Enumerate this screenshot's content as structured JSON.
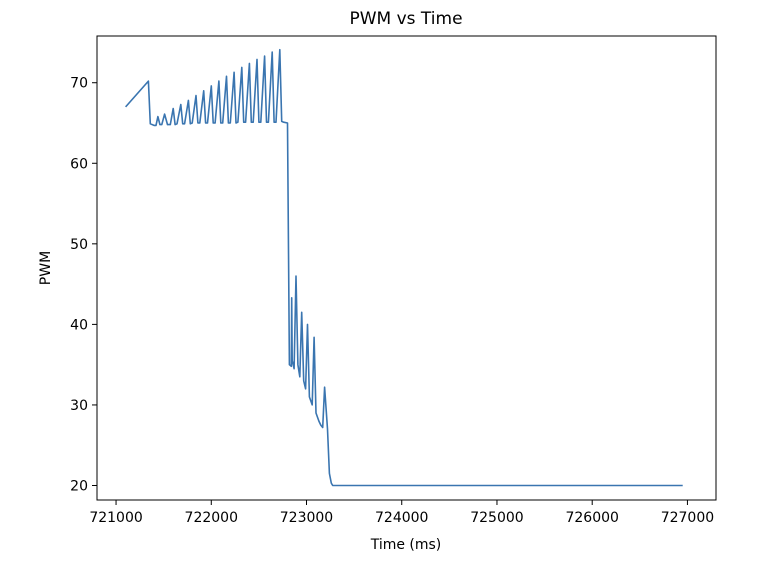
{
  "chart_data": {
    "type": "line",
    "title": "PWM vs Time",
    "xlabel": "Time (ms)",
    "ylabel": "PWM",
    "xlim": [
      720800,
      727300
    ],
    "ylim": [
      18.2,
      75.8
    ],
    "xticks": [
      721000,
      722000,
      723000,
      724000,
      725000,
      726000,
      727000
    ],
    "yticks": [
      20,
      30,
      40,
      50,
      60,
      70
    ],
    "grid": false,
    "line_color": "#3a75b0",
    "series": [
      {
        "x": [
          721100,
          721340,
          721360,
          721400,
          721420,
          721440,
          721460,
          721480,
          721510,
          721540,
          721570,
          721600,
          721620,
          721640,
          721680,
          721700,
          721720,
          721760,
          721780,
          721800,
          721840,
          721860,
          721880,
          721920,
          721940,
          721960,
          722000,
          722020,
          722040,
          722080,
          722100,
          722120,
          722160,
          722180,
          722200,
          722240,
          722260,
          722280,
          722320,
          722340,
          722360,
          722400,
          722420,
          722440,
          722480,
          722500,
          722520,
          722560,
          722580,
          722600,
          722640,
          722660,
          722680,
          722720,
          722740,
          722760,
          722800,
          722820,
          722840,
          722845,
          722850,
          722870,
          722890,
          722910,
          722930,
          722950,
          722970,
          722990,
          723010,
          723030,
          723060,
          723080,
          723100,
          723130,
          723150,
          723170,
          723190,
          723220,
          723240,
          723260,
          723275,
          723290,
          723320,
          726950
        ],
        "y": [
          67,
          70.2,
          64.9,
          64.7,
          64.7,
          65.8,
          64.8,
          64.8,
          66.1,
          64.8,
          64.8,
          66.8,
          64.8,
          64.9,
          67.3,
          64.9,
          64.9,
          67.8,
          64.9,
          65.0,
          68.4,
          65.0,
          65.0,
          69.0,
          65.0,
          65.0,
          69.6,
          65.0,
          65.0,
          70.2,
          65.0,
          65.0,
          70.8,
          65.0,
          65.0,
          71.3,
          65.0,
          65.1,
          71.9,
          65.1,
          65.1,
          72.4,
          65.1,
          65.1,
          72.9,
          65.1,
          65.1,
          73.3,
          65.1,
          65.1,
          73.8,
          65.1,
          65.1,
          74.1,
          65.2,
          65.1,
          65.0,
          35.0,
          34.8,
          43.3,
          35.5,
          34.5,
          46.0,
          35.0,
          33.5,
          41.5,
          33.0,
          32.0,
          40.0,
          31.0,
          30.0,
          38.4,
          29.0,
          28.0,
          27.5,
          27.2,
          32.2,
          27.0,
          21.5,
          20.3,
          20.0,
          20.0,
          20.0,
          20.0
        ]
      }
    ]
  }
}
